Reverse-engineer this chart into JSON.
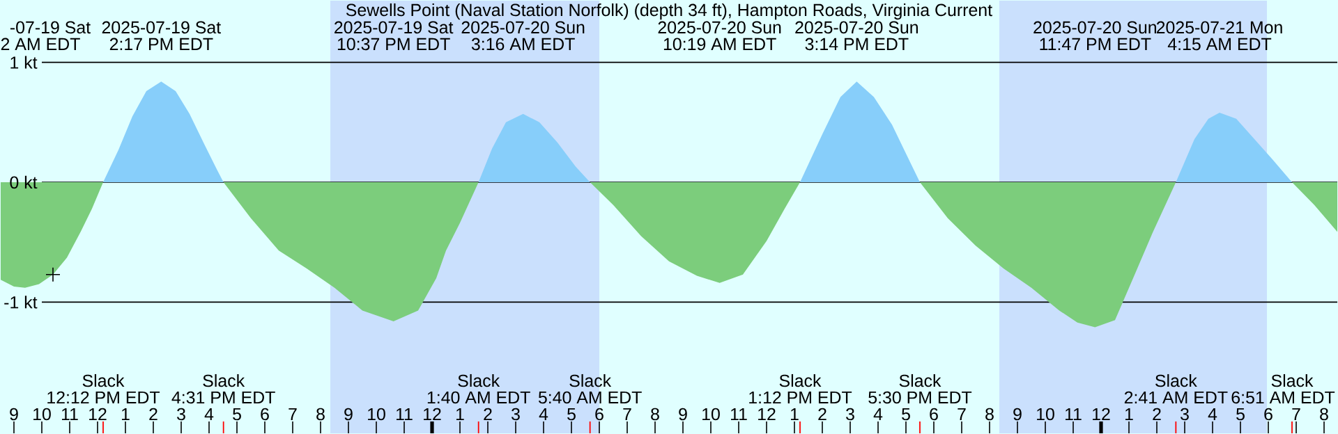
{
  "chart_data": {
    "type": "area",
    "title": "Sewells Point (Naval Station Norfolk) (depth 34 ft), Hampton Roads, Virginia Current",
    "x": [
      "2025-07-19T08:30",
      "2025-07-19T09:00",
      "2025-07-19T09:24",
      "2025-07-19T09:54",
      "2025-07-19T10:24",
      "2025-07-19T10:54",
      "2025-07-19T11:24",
      "2025-07-19T11:48",
      "2025-07-19T12:12",
      "2025-07-19T12:45",
      "2025-07-19T13:15",
      "2025-07-19T13:45",
      "2025-07-19T14:17",
      "2025-07-19T14:48",
      "2025-07-19T15:18",
      "2025-07-19T15:48",
      "2025-07-19T16:15",
      "2025-07-19T16:31",
      "2025-07-19T17:30",
      "2025-07-19T18:30",
      "2025-07-19T19:30",
      "2025-07-19T20:30",
      "2025-07-19T21:30",
      "2025-07-19T22:37",
      "2025-07-19T23:30",
      "2025-07-20T00:09",
      "2025-07-20T00:30",
      "2025-07-20T01:00",
      "2025-07-20T01:40",
      "2025-07-20T02:09",
      "2025-07-20T02:39",
      "2025-07-20T03:16",
      "2025-07-20T03:51",
      "2025-07-20T04:30",
      "2025-07-20T05:09",
      "2025-07-20T05:40",
      "2025-07-20T06:30",
      "2025-07-20T07:30",
      "2025-07-20T08:30",
      "2025-07-20T09:30",
      "2025-07-20T10:19",
      "2025-07-20T11:09",
      "2025-07-20T12:00",
      "2025-07-20T12:39",
      "2025-07-20T13:12",
      "2025-07-20T14:00",
      "2025-07-20T14:39",
      "2025-07-20T15:14",
      "2025-07-20T15:51",
      "2025-07-20T16:30",
      "2025-07-20T17:00",
      "2025-07-20T17:30",
      "2025-07-20T18:30",
      "2025-07-20T19:30",
      "2025-07-20T20:30",
      "2025-07-20T21:30",
      "2025-07-20T22:30",
      "2025-07-20T23:09",
      "2025-07-20T23:47",
      "2025-07-21T00:30",
      "2025-07-21T01:09",
      "2025-07-21T01:51",
      "2025-07-21T02:41",
      "2025-07-21T03:21",
      "2025-07-21T03:51",
      "2025-07-21T04:15",
      "2025-07-21T04:51",
      "2025-07-21T05:30",
      "2025-07-21T06:09",
      "2025-07-21T06:51",
      "2025-07-21T07:39",
      "2025-07-21T08:30"
    ],
    "series": [
      {
        "color": "#7ccd7c",
        "values": [
          -0.81,
          -0.87,
          -0.88,
          -0.85,
          -0.77,
          -0.63,
          -0.41,
          -0.22,
          0,
          null,
          null,
          null,
          null,
          null,
          null,
          null,
          null,
          0,
          -0.3,
          -0.57,
          -0.72,
          -0.88,
          -1.07,
          -1.16,
          -1.07,
          -0.8,
          -0.57,
          -0.34,
          0,
          null,
          null,
          null,
          null,
          null,
          null,
          0,
          -0.19,
          -0.45,
          -0.66,
          -0.78,
          -0.84,
          -0.77,
          -0.49,
          -0.22,
          0,
          null,
          null,
          null,
          null,
          null,
          null,
          0,
          -0.3,
          -0.53,
          -0.72,
          -0.88,
          -1.07,
          -1.17,
          -1.21,
          -1.15,
          -0.8,
          -0.42,
          0,
          null,
          null,
          null,
          null,
          null,
          null,
          0,
          -0.19,
          -0.42
        ]
      },
      {
        "color": "#87cefa",
        "values": [
          null,
          null,
          null,
          null,
          null,
          null,
          null,
          null,
          0,
          0.27,
          0.55,
          0.76,
          0.84,
          0.76,
          0.57,
          0.33,
          0.12,
          0,
          null,
          null,
          null,
          null,
          null,
          null,
          null,
          null,
          null,
          null,
          0,
          0.28,
          0.5,
          0.57,
          0.5,
          0.33,
          0.13,
          0,
          null,
          null,
          null,
          null,
          null,
          null,
          null,
          null,
          0,
          0.4,
          0.71,
          0.84,
          0.71,
          0.48,
          0.24,
          0,
          null,
          null,
          null,
          null,
          null,
          null,
          null,
          null,
          null,
          null,
          0,
          0.36,
          0.53,
          0.58,
          0.53,
          0.36,
          0.19,
          0,
          null,
          null
        ]
      },
      {
        "type": "scatter",
        "marker": "cross",
        "color": "#000000",
        "x": [
          "2025-07-19T10:24"
        ],
        "values": [
          -0.77
        ]
      }
    ],
    "xlim": [
      "2025-07-19T08:30",
      "2025-07-21T08:30"
    ],
    "ylim": [
      -2.1,
      1.52
    ],
    "xticks": [
      {
        "value": "2025-07-19T09:00",
        "label": "9"
      },
      {
        "value": "2025-07-19T10:00",
        "label": "10"
      },
      {
        "value": "2025-07-19T11:00",
        "label": "11"
      },
      {
        "value": "2025-07-19T12:00",
        "label": "12"
      },
      {
        "value": "2025-07-19T13:00",
        "label": "1"
      },
      {
        "value": "2025-07-19T14:00",
        "label": "2"
      },
      {
        "value": "2025-07-19T15:00",
        "label": "3"
      },
      {
        "value": "2025-07-19T16:00",
        "label": "4"
      },
      {
        "value": "2025-07-19T17:00",
        "label": "5"
      },
      {
        "value": "2025-07-19T18:00",
        "label": "6"
      },
      {
        "value": "2025-07-19T19:00",
        "label": "7"
      },
      {
        "value": "2025-07-19T20:00",
        "label": "8"
      },
      {
        "value": "2025-07-19T21:00",
        "label": "9"
      },
      {
        "value": "2025-07-19T22:00",
        "label": "10"
      },
      {
        "value": "2025-07-19T23:00",
        "label": "11"
      },
      {
        "value": "2025-07-20T00:00",
        "label": "12"
      },
      {
        "value": "2025-07-20T01:00",
        "label": "1"
      },
      {
        "value": "2025-07-20T02:00",
        "label": "2"
      },
      {
        "value": "2025-07-20T03:00",
        "label": "3"
      },
      {
        "value": "2025-07-20T04:00",
        "label": "4"
      },
      {
        "value": "2025-07-20T05:00",
        "label": "5"
      },
      {
        "value": "2025-07-20T06:00",
        "label": "6"
      },
      {
        "value": "2025-07-20T07:00",
        "label": "7"
      },
      {
        "value": "2025-07-20T08:00",
        "label": "8"
      },
      {
        "value": "2025-07-20T09:00",
        "label": "9"
      },
      {
        "value": "2025-07-20T10:00",
        "label": "10"
      },
      {
        "value": "2025-07-20T11:00",
        "label": "11"
      },
      {
        "value": "2025-07-20T12:00",
        "label": "12"
      },
      {
        "value": "2025-07-20T13:00",
        "label": "1"
      },
      {
        "value": "2025-07-20T14:00",
        "label": "2"
      },
      {
        "value": "2025-07-20T15:00",
        "label": "3"
      },
      {
        "value": "2025-07-20T16:00",
        "label": "4"
      },
      {
        "value": "2025-07-20T17:00",
        "label": "5"
      },
      {
        "value": "2025-07-20T18:00",
        "label": "6"
      },
      {
        "value": "2025-07-20T19:00",
        "label": "7"
      },
      {
        "value": "2025-07-20T20:00",
        "label": "8"
      },
      {
        "value": "2025-07-20T21:00",
        "label": "9"
      },
      {
        "value": "2025-07-20T22:00",
        "label": "10"
      },
      {
        "value": "2025-07-20T23:00",
        "label": "11"
      },
      {
        "value": "2025-07-21T00:00",
        "label": "12"
      },
      {
        "value": "2025-07-21T01:00",
        "label": "1"
      },
      {
        "value": "2025-07-21T02:00",
        "label": "2"
      },
      {
        "value": "2025-07-21T03:00",
        "label": "3"
      },
      {
        "value": "2025-07-21T04:00",
        "label": "4"
      },
      {
        "value": "2025-07-21T05:00",
        "label": "5"
      },
      {
        "value": "2025-07-21T06:00",
        "label": "6"
      },
      {
        "value": "2025-07-21T07:00",
        "label": "7"
      },
      {
        "value": "2025-07-21T08:00",
        "label": "8"
      }
    ],
    "yticks": [
      {
        "value": 1,
        "label": "1 kt"
      },
      {
        "value": 0,
        "label": "0 kt"
      },
      {
        "value": -1,
        "label": "-1 kt"
      }
    ],
    "grid": "y",
    "bands": [
      {
        "axis": "x",
        "from": "2025-07-19T20:21",
        "to": "2025-07-20T06:00",
        "color": "#cae0fd"
      },
      {
        "axis": "x",
        "from": "2025-07-20T20:21",
        "to": "2025-07-21T05:57",
        "color": "#cae0fd"
      }
    ],
    "annotations": [
      "-07-19 Sat",
      "2 AM EDT",
      "2025-07-19 Sat",
      "2:17 PM EDT",
      "2025-07-19 Sat",
      "10:37 PM EDT",
      "2025-07-20 Sun",
      "3:16 AM EDT",
      "2025-07-20 Sun",
      "10:19 AM EDT",
      "2025-07-20 Sun",
      "3:14 PM EDT",
      "2025-07-20 Sun",
      "11:47 PM EDT",
      "2025-07-21 Mon",
      "4:15 AM EDT",
      "Slack",
      "12:12 PM EDT",
      "Slack",
      "4:31 PM EDT",
      "Slack",
      "1:40 AM EDT",
      "Slack",
      "5:40 AM EDT",
      "Slack",
      "1:12 PM EDT",
      "Slack",
      "5:30 PM EDT",
      "Slack",
      "2:41 AM EDT",
      "Slack",
      "6:51 AM EDT"
    ]
  }
}
